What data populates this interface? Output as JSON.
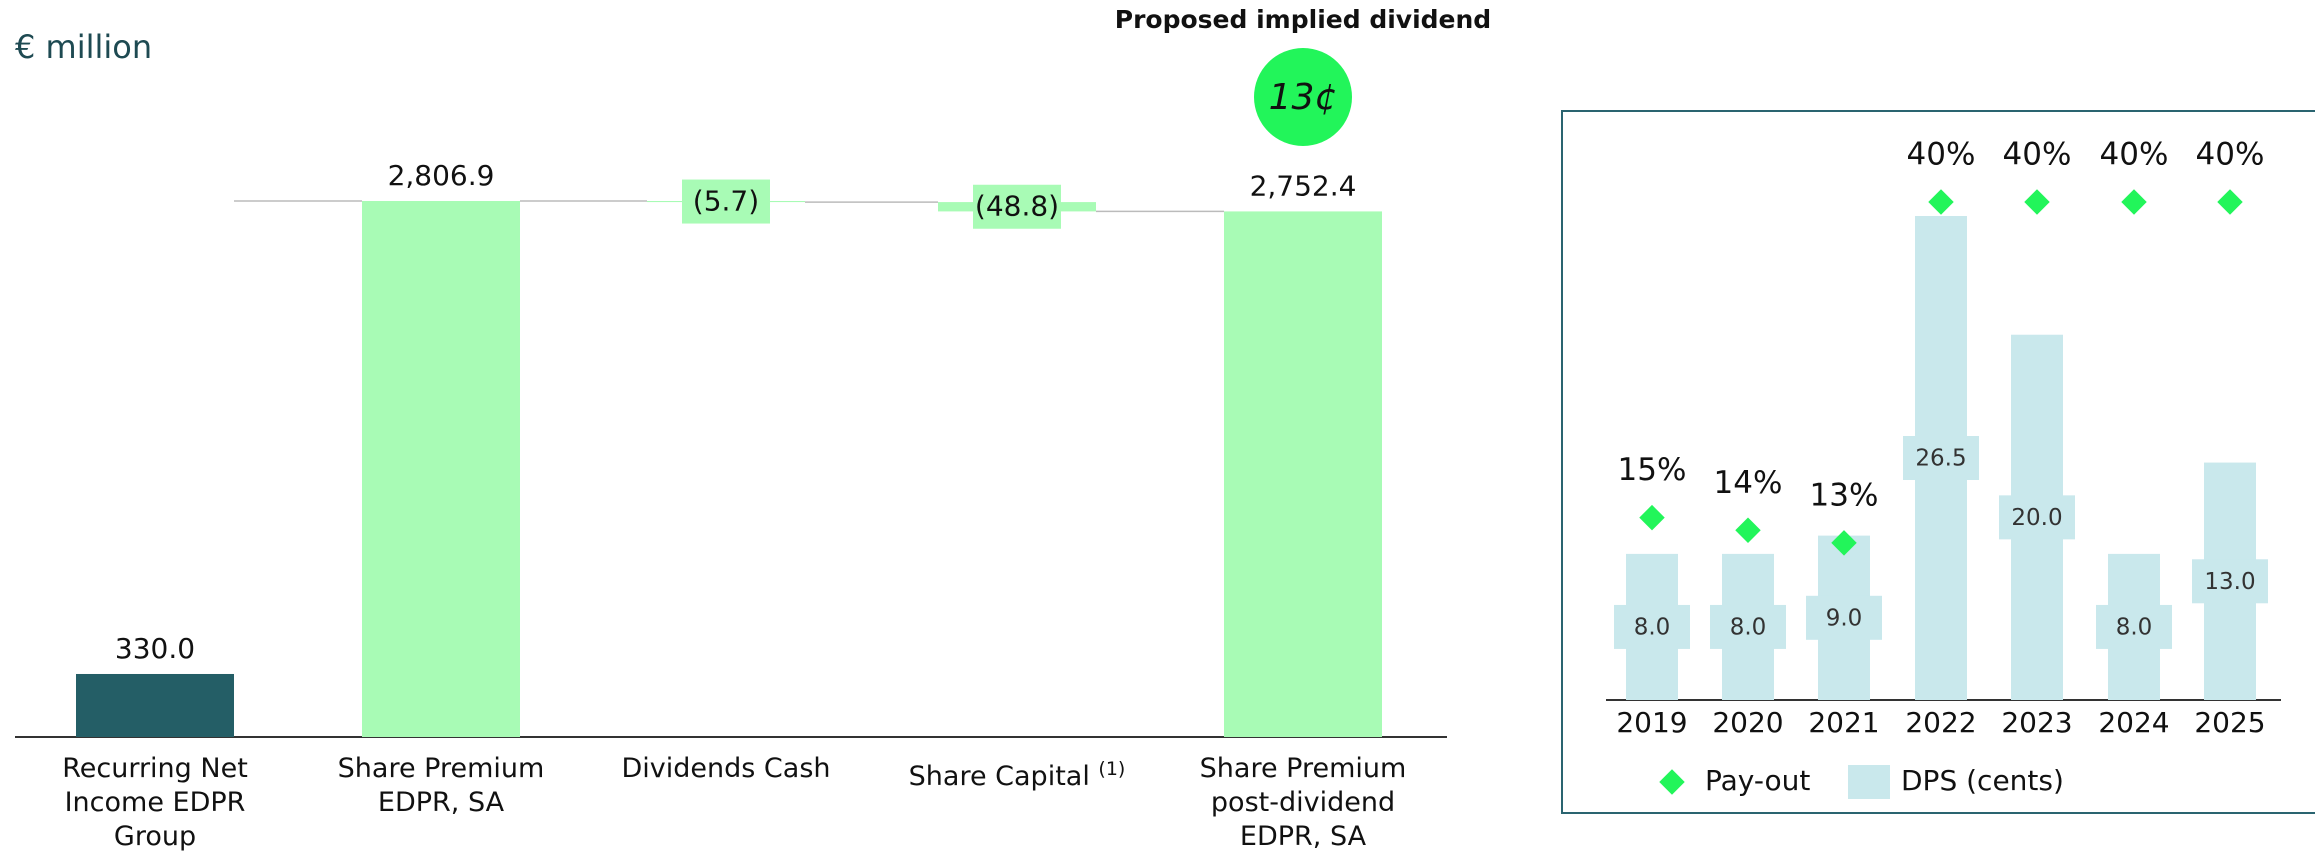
{
  "chart_data": [
    {
      "type": "waterfall",
      "title": "€ million",
      "annotation": "Proposed implied dividend",
      "annotation_bubble": "13¢",
      "categories": [
        "Recurring Net Income EDPR Group",
        "Share Premium EDPR, SA",
        "Dividends Cash",
        "Share Capital",
        "Share Premium post-dividend EDPR, SA"
      ],
      "footnotes": [
        null,
        null,
        null,
        "(1)",
        null
      ],
      "measure": [
        "absolute",
        "absolute",
        "relative",
        "relative",
        "total"
      ],
      "values": [
        330.0,
        2806.9,
        -5.7,
        -48.8,
        2752.4
      ],
      "value_labels": [
        "330.0",
        "2,806.9",
        "(5.7)",
        "(48.8)",
        "2,752.4"
      ],
      "colors": [
        "#245e66",
        "#a8fbb5",
        "#a8fbb5",
        "#a8fbb5",
        "#a8fbb5"
      ]
    },
    {
      "type": "bar_scatter",
      "categories": [
        "2019",
        "2020",
        "2021",
        "2022",
        "2023",
        "2024",
        "2025"
      ],
      "series": [
        {
          "name": "DPS (cents)",
          "type": "bar",
          "color": "#c9e8ec",
          "values": [
            8.0,
            8.0,
            9.0,
            26.5,
            20.0,
            8.0,
            13.0
          ],
          "value_labels": [
            "8.0",
            "8.0",
            "9.0",
            "26.5",
            "20.0",
            "8.0",
            "13.0"
          ]
        },
        {
          "name": "Pay-out",
          "type": "scatter",
          "axis": "y2",
          "color": "#22f55a",
          "values": [
            15,
            14,
            13,
            40,
            40,
            40,
            40
          ],
          "value_labels": [
            "15%",
            "14%",
            "13%",
            "40%",
            "40%",
            "40%",
            "40%"
          ]
        }
      ],
      "legend": "bottom"
    }
  ]
}
